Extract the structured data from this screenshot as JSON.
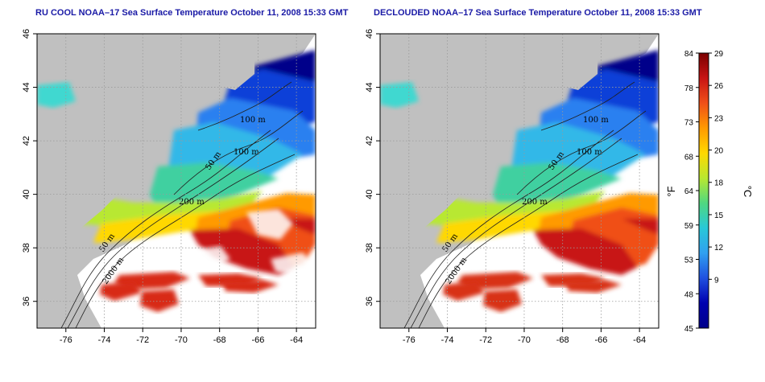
{
  "panels": [
    {
      "title": "RU COOL NOAA–17 Sea Surface Temperature October 11, 2008 15:33 GMT",
      "contour_labels": [
        "100 m",
        "100 m",
        "50 m",
        "200 m",
        "50 m",
        "2000 m"
      ]
    },
    {
      "title": "DECLOUDED NOAA–17 Sea Surface Temperature October 11, 2008 15:33 GMT",
      "contour_labels": [
        "100 m",
        "100 m",
        "50 m",
        "200 m",
        "50 m",
        "2000 m"
      ]
    }
  ],
  "map": {
    "lon_ticks": [
      "-76",
      "-74",
      "-72",
      "-70",
      "-68",
      "-66",
      "-64"
    ],
    "lat_ticks": [
      "46",
      "44",
      "42",
      "40",
      "38",
      "36"
    ],
    "lon_range": [
      -77.5,
      -63
    ],
    "lat_range": [
      35,
      46
    ],
    "grid": "dotted",
    "land_color": "#c0c0c0"
  },
  "colorbar": {
    "fahrenheit_ticks": [
      "84",
      "78",
      "73",
      "68",
      "64",
      "59",
      "53",
      "48",
      "45"
    ],
    "celsius_ticks": [
      "29",
      "26",
      "23",
      "20",
      "18",
      "15",
      "12",
      "9"
    ],
    "unit_f": "°F",
    "unit_c": "°C",
    "colors": [
      "#7a0000",
      "#c81414",
      "#f05018",
      "#ff9a00",
      "#ffd800",
      "#b8e830",
      "#50d880",
      "#28c8d8",
      "#30a0f0",
      "#2050e0",
      "#0000b0",
      "#00008a"
    ]
  }
}
